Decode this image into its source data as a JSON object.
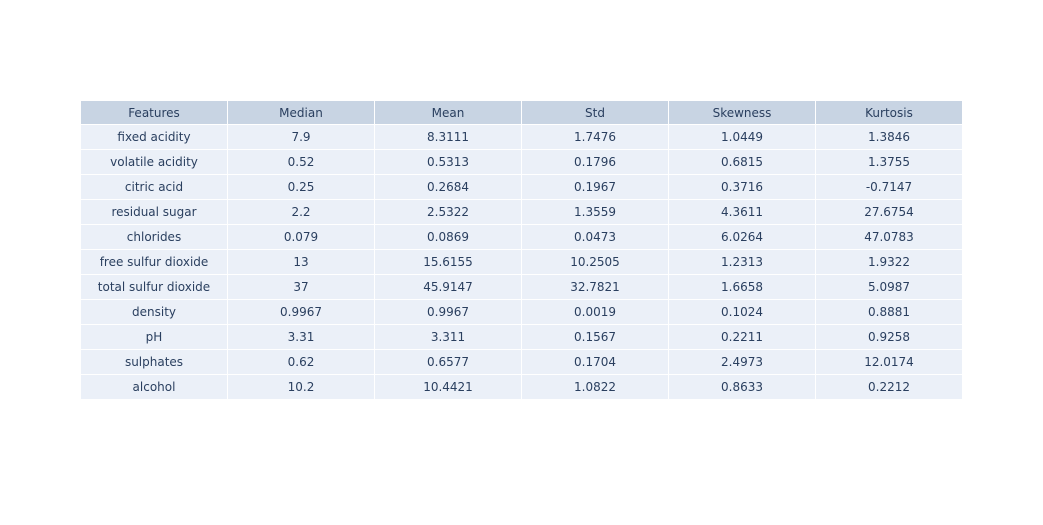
{
  "colors": {
    "header_fill": "#c8d4e3",
    "cell_fill": "#ebf0f8",
    "text": "#2a3f5f",
    "border": "#ffffff"
  },
  "chart_data": {
    "type": "table",
    "columns": [
      "Features",
      "Median",
      "Mean",
      "Std",
      "Skewness",
      "Kurtosis"
    ],
    "rows": [
      [
        "fixed acidity",
        "7.9",
        "8.3111",
        "1.7476",
        "1.0449",
        "1.3846"
      ],
      [
        "volatile acidity",
        "0.52",
        "0.5313",
        "0.1796",
        "0.6815",
        "1.3755"
      ],
      [
        "citric acid",
        "0.25",
        "0.2684",
        "0.1967",
        "0.3716",
        "-0.7147"
      ],
      [
        "residual sugar",
        "2.2",
        "2.5322",
        "1.3559",
        "4.3611",
        "27.6754"
      ],
      [
        "chlorides",
        "0.079",
        "0.0869",
        "0.0473",
        "6.0264",
        "47.0783"
      ],
      [
        "free sulfur dioxide",
        "13",
        "15.6155",
        "10.2505",
        "1.2313",
        "1.9322"
      ],
      [
        "total sulfur dioxide",
        "37",
        "45.9147",
        "32.7821",
        "1.6658",
        "5.0987"
      ],
      [
        "density",
        "0.9967",
        "0.9967",
        "0.0019",
        "0.1024",
        "0.8881"
      ],
      [
        "pH",
        "3.31",
        "3.311",
        "0.1567",
        "0.2211",
        "0.9258"
      ],
      [
        "sulphates",
        "0.62",
        "0.6577",
        "0.1704",
        "2.4973",
        "12.0174"
      ],
      [
        "alcohol",
        "10.2",
        "10.4421",
        "1.0822",
        "0.8633",
        "0.2212"
      ]
    ]
  }
}
